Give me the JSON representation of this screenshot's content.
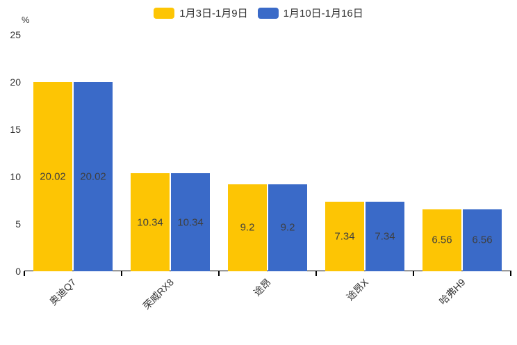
{
  "chart_data": {
    "type": "bar",
    "title": "",
    "xlabel": "",
    "ylabel": "%",
    "categories": [
      "奥迪Q7",
      "荣威RX8",
      "途昂",
      "途昂X",
      "哈弗H9"
    ],
    "series": [
      {
        "name": "1月3日-1月9日",
        "color": "#FDC504",
        "values": [
          20.02,
          10.34,
          9.2,
          7.34,
          6.56
        ]
      },
      {
        "name": "1月10日-1月16日",
        "color": "#3A6AC8",
        "values": [
          20.02,
          10.34,
          9.2,
          7.34,
          6.56
        ]
      }
    ],
    "ylim": [
      0,
      25
    ],
    "yticks": [
      0,
      5,
      10,
      15,
      20,
      25
    ],
    "grid": false,
    "legend_position": "top-center",
    "value_labels": "inside-center",
    "value_label_texts": [
      [
        "20.02",
        "10.34",
        "9.2",
        "7.34",
        "6.56"
      ],
      [
        "20.02",
        "10.34",
        "9.2",
        "7.34",
        "6.56"
      ]
    ]
  },
  "colors": {
    "background": "#ffffff",
    "axis": "#000000",
    "text": "#333333",
    "bar_value_text": "#3f3f3f"
  }
}
